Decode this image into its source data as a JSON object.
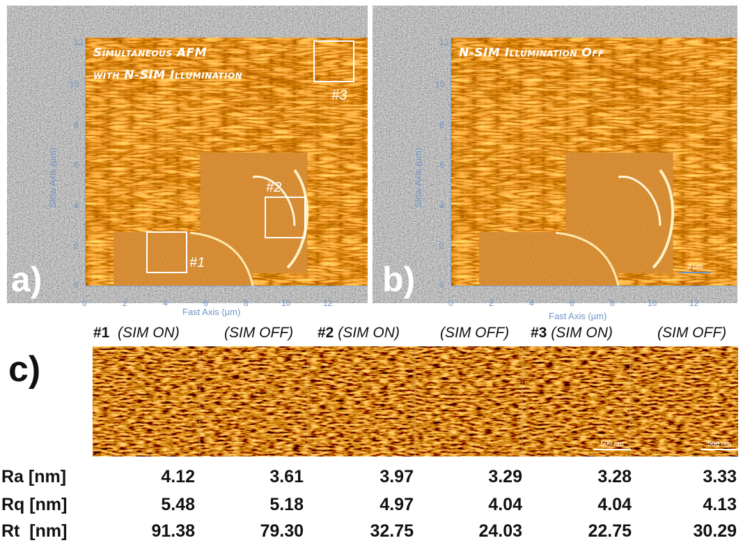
{
  "panel_a": {
    "letter": "a)",
    "title_line1": "Simultaneous AFM",
    "title_line2": "with N-SIM Illumination",
    "regions": [
      {
        "label": "#1"
      },
      {
        "label": "#2"
      },
      {
        "label": "#3"
      }
    ],
    "xlabel": "Fast Axis  (µm)",
    "ylabel": "Slow Axis  (µm)",
    "xticks": [
      "0",
      "2",
      "4",
      "6",
      "8",
      "10",
      "12"
    ],
    "yticks": [
      "0",
      "2",
      "4",
      "6",
      "8",
      "10",
      "12"
    ]
  },
  "panel_b": {
    "letter": "b)",
    "title": "N-SIM Illumination Off",
    "xlabel": "Fast Axis  (µm)",
    "ylabel": "Slow Axis  (µm)",
    "xticks": [
      "0",
      "2",
      "4",
      "6",
      "8",
      "10",
      "12"
    ],
    "yticks": [
      "0",
      "2",
      "4",
      "6",
      "8",
      "10",
      "12"
    ],
    "scale_text": "2 µm"
  },
  "panel_c": {
    "letter": "c)",
    "columns": [
      {
        "num": "#1",
        "cond": "(SIM ON)"
      },
      {
        "num": "",
        "cond": "(SIM OFF)"
      },
      {
        "num": "#2",
        "cond": "(SIM ON)"
      },
      {
        "num": "",
        "cond": "(SIM OFF)"
      },
      {
        "num": "#3",
        "cond": "(SIM ON)"
      },
      {
        "num": "",
        "cond": "(SIM OFF)"
      }
    ],
    "scale_text": "500 nm"
  },
  "table": {
    "rows": [
      {
        "label": "Ra [nm]",
        "values": [
          "4.12",
          "3.61",
          "3.97",
          "3.29",
          "3.28",
          "3.33"
        ]
      },
      {
        "label": "Rq [nm]",
        "values": [
          "5.48",
          "5.18",
          "4.97",
          "4.04",
          "4.04",
          "4.13"
        ]
      },
      {
        "label": "Rt  [nm]",
        "values": [
          "91.38",
          "79.30",
          "32.75",
          "24.03",
          "22.75",
          "30.29"
        ]
      }
    ]
  },
  "colors": {
    "afm": "#8a3a0a",
    "axis": "#6f94c4",
    "fluor_bg": "#3a3a3a"
  }
}
